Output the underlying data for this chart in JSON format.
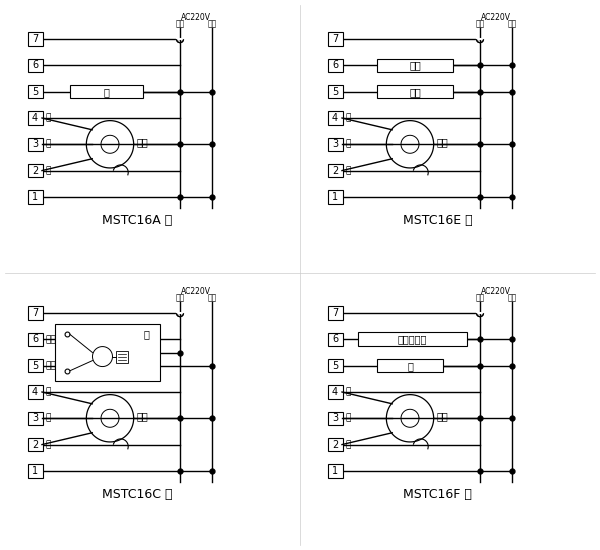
{
  "bg_color": "#ffffff",
  "lc": "#000000",
  "lw": 1.0,
  "diagrams": [
    {
      "title": "MSTC16A 型",
      "type": "A"
    },
    {
      "title": "MSTC16E 型",
      "type": "E"
    },
    {
      "title": "MSTC16C 型",
      "type": "C"
    },
    {
      "title": "MSTC16F 型",
      "type": "F"
    }
  ],
  "terminal_labels": [
    "1",
    "2",
    "3",
    "4",
    "5",
    "6",
    "7"
  ],
  "fan_speed_labels": [
    "低",
    "中",
    "高"
  ],
  "fan_label": "风机",
  "valve_label": "阀",
  "hot_valve_label": "热阀",
  "cold_valve_label": "冷阀",
  "aux_heat_label": "辅助电加热",
  "valve_close_label": "阀关",
  "valve_open_label": "阀开",
  "ac_label": "AC220V",
  "neutral_label": "零线",
  "live_label": "火线"
}
